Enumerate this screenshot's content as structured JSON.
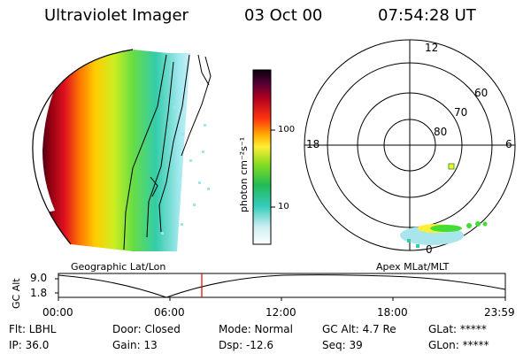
{
  "header": {
    "instrument": "Ultraviolet Imager",
    "date": "03 Oct 00",
    "time": "07:54:28 UT"
  },
  "colorbar": {
    "unit_label": "photon cm⁻²s⁻¹",
    "ticks": [
      "100",
      "10"
    ]
  },
  "polar_plot": {
    "mlt_labels": {
      "top": "12",
      "left": "18",
      "right": "6",
      "bottom": "0"
    },
    "lat_labels": [
      "60",
      "70",
      "80"
    ]
  },
  "timeline": {
    "left_label": "Geographic Lat/Lon",
    "right_label": "Apex MLat/MLT",
    "y_axis_label": "GC Alt",
    "y_ticks": [
      "9.0",
      "1.8"
    ],
    "x_ticks": [
      "00:00",
      "06:00",
      "12:00",
      "18:00",
      "23:59"
    ],
    "marker_time": "07:54"
  },
  "status": {
    "filter": "Flt: LBHL",
    "ip": "IP: 36.0",
    "door": "Door: Closed",
    "gain": "Gain: 13",
    "mode": "Mode: Normal",
    "dsp": "Dsp:   -12.6",
    "gc_alt": "GC Alt: 4.7 Re",
    "seq": "Seq: 39",
    "glat": "GLat: *****",
    "glon": "GLon: *****"
  },
  "colors": {
    "marker": "#e00000",
    "aurora_green": "#33dd33",
    "aurora_yellow": "#ffee33"
  }
}
